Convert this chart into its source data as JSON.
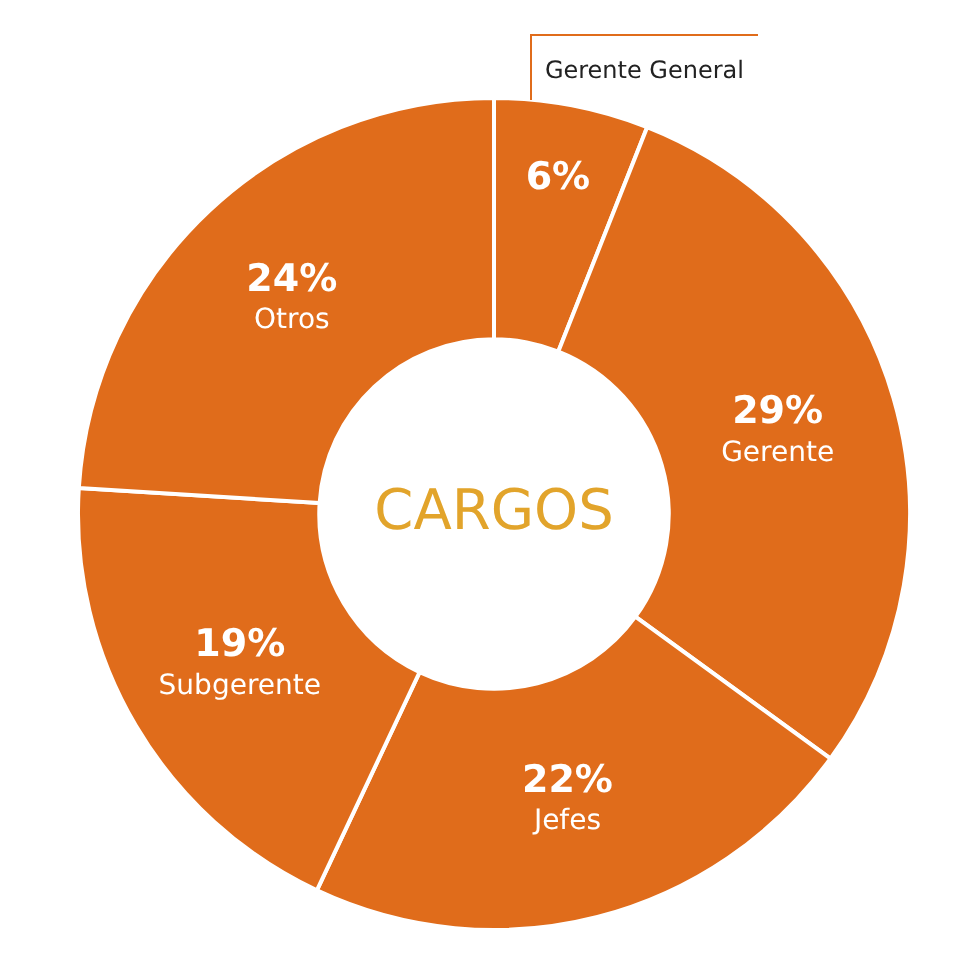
{
  "chart_data": {
    "type": "donut",
    "title": "CARGOS",
    "categories": [
      "Gerente General",
      "Gerente",
      "Jefes",
      "Subgerente",
      "Otros"
    ],
    "values": [
      6,
      29,
      22,
      19,
      24
    ],
    "colors": [
      "#e06c1b",
      "#e06c1b",
      "#e06c1b",
      "#e06c1b",
      "#e06c1b"
    ],
    "value_labels": [
      "6%",
      "29%",
      "22%",
      "19%",
      "24%"
    ]
  }
}
